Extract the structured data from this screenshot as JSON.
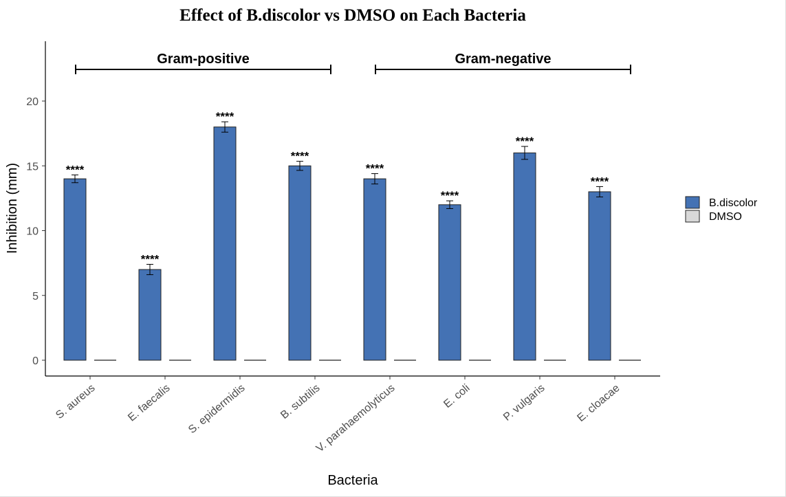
{
  "chart_data": {
    "type": "bar",
    "title": "Effect of B.discolor vs DMSO on Each Bacteria",
    "xlabel": "Bacteria",
    "ylabel": "Inhibition (mm)",
    "ylim": [
      -1.2,
      24.7
    ],
    "yticks": [
      0,
      5,
      10,
      15,
      20
    ],
    "grid": false,
    "legend_position": "right",
    "categories": [
      "S. aureus",
      "E. faecalis",
      "S. epidermidis",
      "B. subtilis",
      "V. parahaemolyticus",
      "E. coli",
      "P. vulgaris",
      "E. cloacae"
    ],
    "series": [
      {
        "name": "B.discolor",
        "color": "#4472B4",
        "values": [
          14,
          7,
          18,
          15,
          14,
          12,
          16,
          13
        ],
        "errors": [
          0.3,
          0.4,
          0.4,
          0.35,
          0.4,
          0.3,
          0.5,
          0.4
        ]
      },
      {
        "name": "DMSO",
        "color": "#D9D9D9",
        "values": [
          0,
          0,
          0,
          0,
          0,
          0,
          0,
          0
        ],
        "errors": [
          0,
          0,
          0,
          0,
          0,
          0,
          0,
          0
        ]
      }
    ],
    "significance": [
      "****",
      "****",
      "****",
      "****",
      "****",
      "****",
      "****",
      "****"
    ],
    "groups": [
      {
        "label": "Gram-positive",
        "from": 0,
        "to": 3
      },
      {
        "label": "Gram-negative",
        "from": 4,
        "to": 7
      }
    ]
  }
}
